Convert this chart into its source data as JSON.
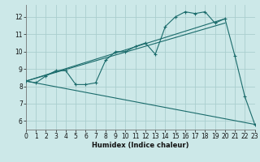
{
  "xlabel": "Humidex (Indice chaleur)",
  "background_color": "#cce8e8",
  "grid_color": "#aacece",
  "line_color": "#1a6b6b",
  "xlim": [
    0,
    23
  ],
  "ylim": [
    5.5,
    12.7
  ],
  "yticks": [
    6,
    7,
    8,
    9,
    10,
    11,
    12
  ],
  "xticks": [
    0,
    1,
    2,
    3,
    4,
    5,
    6,
    7,
    8,
    9,
    10,
    11,
    12,
    13,
    14,
    15,
    16,
    17,
    18,
    19,
    20,
    21,
    22,
    23
  ],
  "line1_x": [
    0,
    1,
    2,
    3,
    4,
    5,
    6,
    7,
    8,
    9,
    10,
    11,
    12,
    13,
    14,
    15,
    16,
    17,
    18,
    19,
    20,
    21,
    22,
    23
  ],
  "line1_y": [
    8.3,
    8.2,
    8.6,
    8.9,
    8.9,
    8.1,
    8.1,
    8.2,
    9.5,
    10.0,
    10.0,
    10.3,
    10.5,
    9.85,
    11.45,
    12.0,
    12.3,
    12.2,
    12.3,
    11.65,
    11.9,
    9.75,
    7.4,
    5.8
  ],
  "line2_x": [
    0,
    23
  ],
  "line2_y": [
    8.3,
    5.8
  ],
  "line3_x": [
    0,
    20
  ],
  "line3_y": [
    8.3,
    11.9
  ],
  "line4_x": [
    0,
    20
  ],
  "line4_y": [
    8.3,
    11.65
  ]
}
